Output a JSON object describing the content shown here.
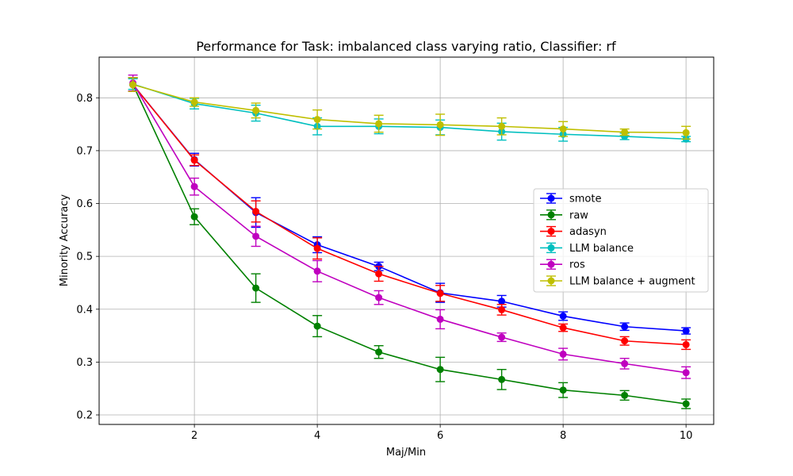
{
  "chart_data": {
    "type": "line",
    "title": "Performance for Task: imbalanced class varying ratio, Classifier: rf",
    "xlabel": "Maj/Min",
    "ylabel": "Minority Accuracy",
    "xlim": [
      0.45,
      10.45
    ],
    "ylim": [
      0.182,
      0.877
    ],
    "xticks": [
      2,
      4,
      6,
      8,
      10
    ],
    "yticks": [
      0.2,
      0.3,
      0.4,
      0.5,
      0.6,
      0.7,
      0.8
    ],
    "grid": true,
    "legend_position": "center-right",
    "x": [
      1,
      2,
      3,
      4,
      5,
      6,
      7,
      8,
      9,
      10
    ],
    "series": [
      {
        "name": "smote",
        "color": "#0000ff",
        "values": [
          0.825,
          0.683,
          0.583,
          0.522,
          0.481,
          0.431,
          0.415,
          0.387,
          0.367,
          0.359
        ],
        "errors": [
          0.013,
          0.012,
          0.028,
          0.015,
          0.008,
          0.018,
          0.011,
          0.008,
          0.007,
          0.006
        ]
      },
      {
        "name": "raw",
        "color": "#008000",
        "values": [
          0.825,
          0.575,
          0.44,
          0.368,
          0.319,
          0.286,
          0.267,
          0.247,
          0.237,
          0.221
        ],
        "errors": [
          0.013,
          0.015,
          0.027,
          0.02,
          0.012,
          0.023,
          0.019,
          0.014,
          0.009,
          0.009
        ]
      },
      {
        "name": "adasyn",
        "color": "#ff0000",
        "values": [
          0.825,
          0.682,
          0.585,
          0.515,
          0.467,
          0.43,
          0.399,
          0.365,
          0.34,
          0.333
        ],
        "errors": [
          0.013,
          0.01,
          0.02,
          0.02,
          0.014,
          0.015,
          0.01,
          0.007,
          0.008,
          0.009
        ]
      },
      {
        "name": "LLM balance",
        "color": "#00bfbf",
        "values": [
          0.826,
          0.789,
          0.771,
          0.746,
          0.746,
          0.744,
          0.736,
          0.731,
          0.727,
          0.722
        ],
        "errors": [
          0.01,
          0.01,
          0.015,
          0.016,
          0.014,
          0.014,
          0.016,
          0.013,
          0.006,
          0.005
        ]
      },
      {
        "name": "ros",
        "color": "#bf00bf",
        "values": [
          0.828,
          0.632,
          0.538,
          0.472,
          0.422,
          0.381,
          0.347,
          0.315,
          0.297,
          0.28
        ],
        "errors": [
          0.015,
          0.016,
          0.019,
          0.02,
          0.013,
          0.018,
          0.008,
          0.011,
          0.01,
          0.011
        ]
      },
      {
        "name": "LLM balance + augment",
        "color": "#bfbf00",
        "values": [
          0.825,
          0.792,
          0.776,
          0.759,
          0.751,
          0.749,
          0.746,
          0.741,
          0.735,
          0.734
        ],
        "errors": [
          0.013,
          0.008,
          0.014,
          0.018,
          0.016,
          0.02,
          0.016,
          0.014,
          0.006,
          0.012
        ]
      }
    ]
  }
}
